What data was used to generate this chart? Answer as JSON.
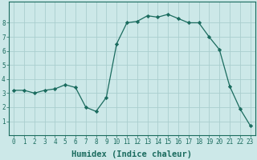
{
  "x": [
    0,
    1,
    2,
    3,
    4,
    5,
    6,
    7,
    8,
    9,
    10,
    11,
    12,
    13,
    14,
    15,
    16,
    17,
    18,
    19,
    20,
    21,
    22,
    23
  ],
  "y": [
    3.2,
    3.2,
    3.0,
    3.2,
    3.3,
    3.6,
    3.4,
    2.0,
    1.7,
    2.7,
    6.5,
    8.0,
    8.1,
    8.5,
    8.4,
    8.6,
    8.3,
    8.0,
    8.0,
    7.0,
    6.1,
    3.5,
    1.9,
    0.7
  ],
  "line_color": "#1a6b5e",
  "marker": "D",
  "marker_size": 2.2,
  "bg_color": "#cce8e8",
  "grid_color": "#aacece",
  "xlabel": "Humidex (Indice chaleur)",
  "xlim": [
    -0.5,
    23.5
  ],
  "ylim": [
    0,
    9.5
  ],
  "yticks": [
    1,
    2,
    3,
    4,
    5,
    6,
    7,
    8
  ],
  "xticks": [
    0,
    1,
    2,
    3,
    4,
    5,
    6,
    7,
    8,
    9,
    10,
    11,
    12,
    13,
    14,
    15,
    16,
    17,
    18,
    19,
    20,
    21,
    22,
    23
  ],
  "tick_color": "#1a6b5e",
  "label_color": "#1a6b5e",
  "font_size": 5.5,
  "xlabel_fontsize": 7.5
}
